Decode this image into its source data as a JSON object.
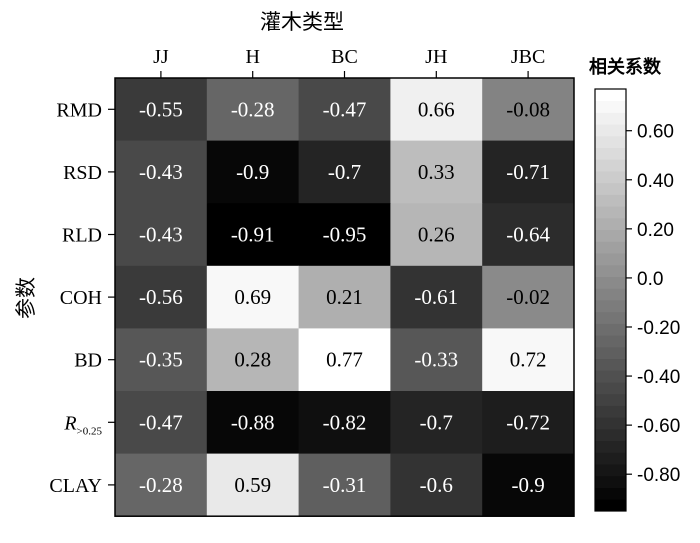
{
  "chart_data": {
    "type": "heatmap",
    "title": "灌木类型",
    "ylabel": "参数",
    "legend_title": "相关系数",
    "x_categories": [
      "JJ",
      "H",
      "BC",
      "JH",
      "JBC"
    ],
    "y_categories": [
      {
        "base": "RMD",
        "sub": ""
      },
      {
        "base": "RSD",
        "sub": ""
      },
      {
        "base": "RLD",
        "sub": ""
      },
      {
        "base": "COH",
        "sub": ""
      },
      {
        "base": "BD",
        "sub": ""
      },
      {
        "base": "R",
        "sub": ">0.25"
      },
      {
        "base": "CLAY",
        "sub": ""
      }
    ],
    "values": [
      [
        -0.55,
        -0.28,
        -0.47,
        0.66,
        -0.08
      ],
      [
        -0.43,
        -0.9,
        -0.7,
        0.33,
        -0.71
      ],
      [
        -0.43,
        -0.91,
        -0.95,
        0.26,
        -0.64
      ],
      [
        -0.56,
        0.69,
        0.21,
        -0.61,
        -0.02
      ],
      [
        -0.35,
        0.28,
        0.77,
        -0.33,
        0.72
      ],
      [
        -0.47,
        -0.88,
        -0.82,
        -0.7,
        -0.72
      ],
      [
        -0.28,
        0.59,
        -0.31,
        -0.6,
        -0.9
      ]
    ],
    "value_labels": [
      [
        "-0.55",
        "-0.28",
        "-0.47",
        "0.66",
        "-0.08"
      ],
      [
        "-0.43",
        "-0.9",
        "-0.7",
        "0.33",
        "-0.71"
      ],
      [
        "-0.43",
        "-0.91",
        "-0.95",
        "0.26",
        "-0.64"
      ],
      [
        "-0.56",
        "0.69",
        "0.21",
        "-0.61",
        "-0.02"
      ],
      [
        "-0.35",
        "0.28",
        "0.77",
        "-0.33",
        "0.72"
      ],
      [
        "-0.47",
        "-0.88",
        "-0.82",
        "-0.7",
        "-0.72"
      ],
      [
        "-0.28",
        "0.59",
        "-0.31",
        "-0.6",
        "-0.9"
      ]
    ],
    "colorbar": {
      "range": [
        -0.95,
        0.77
      ],
      "ticks": [
        0.6,
        0.4,
        0.2,
        0.0,
        -0.2,
        -0.4,
        -0.6,
        -0.8
      ],
      "tick_labels": [
        "0.60",
        "0.40",
        "0.20",
        "0.0",
        "-0.20",
        "-0.40",
        "-0.60",
        "-0.80"
      ],
      "levels": 36,
      "colormap": "grayscale (black = negative, white = positive)"
    },
    "colors": {
      "low": "#000000",
      "high": "#ffffff",
      "text_dark": "#000000",
      "text_light": "#ffffff"
    }
  }
}
